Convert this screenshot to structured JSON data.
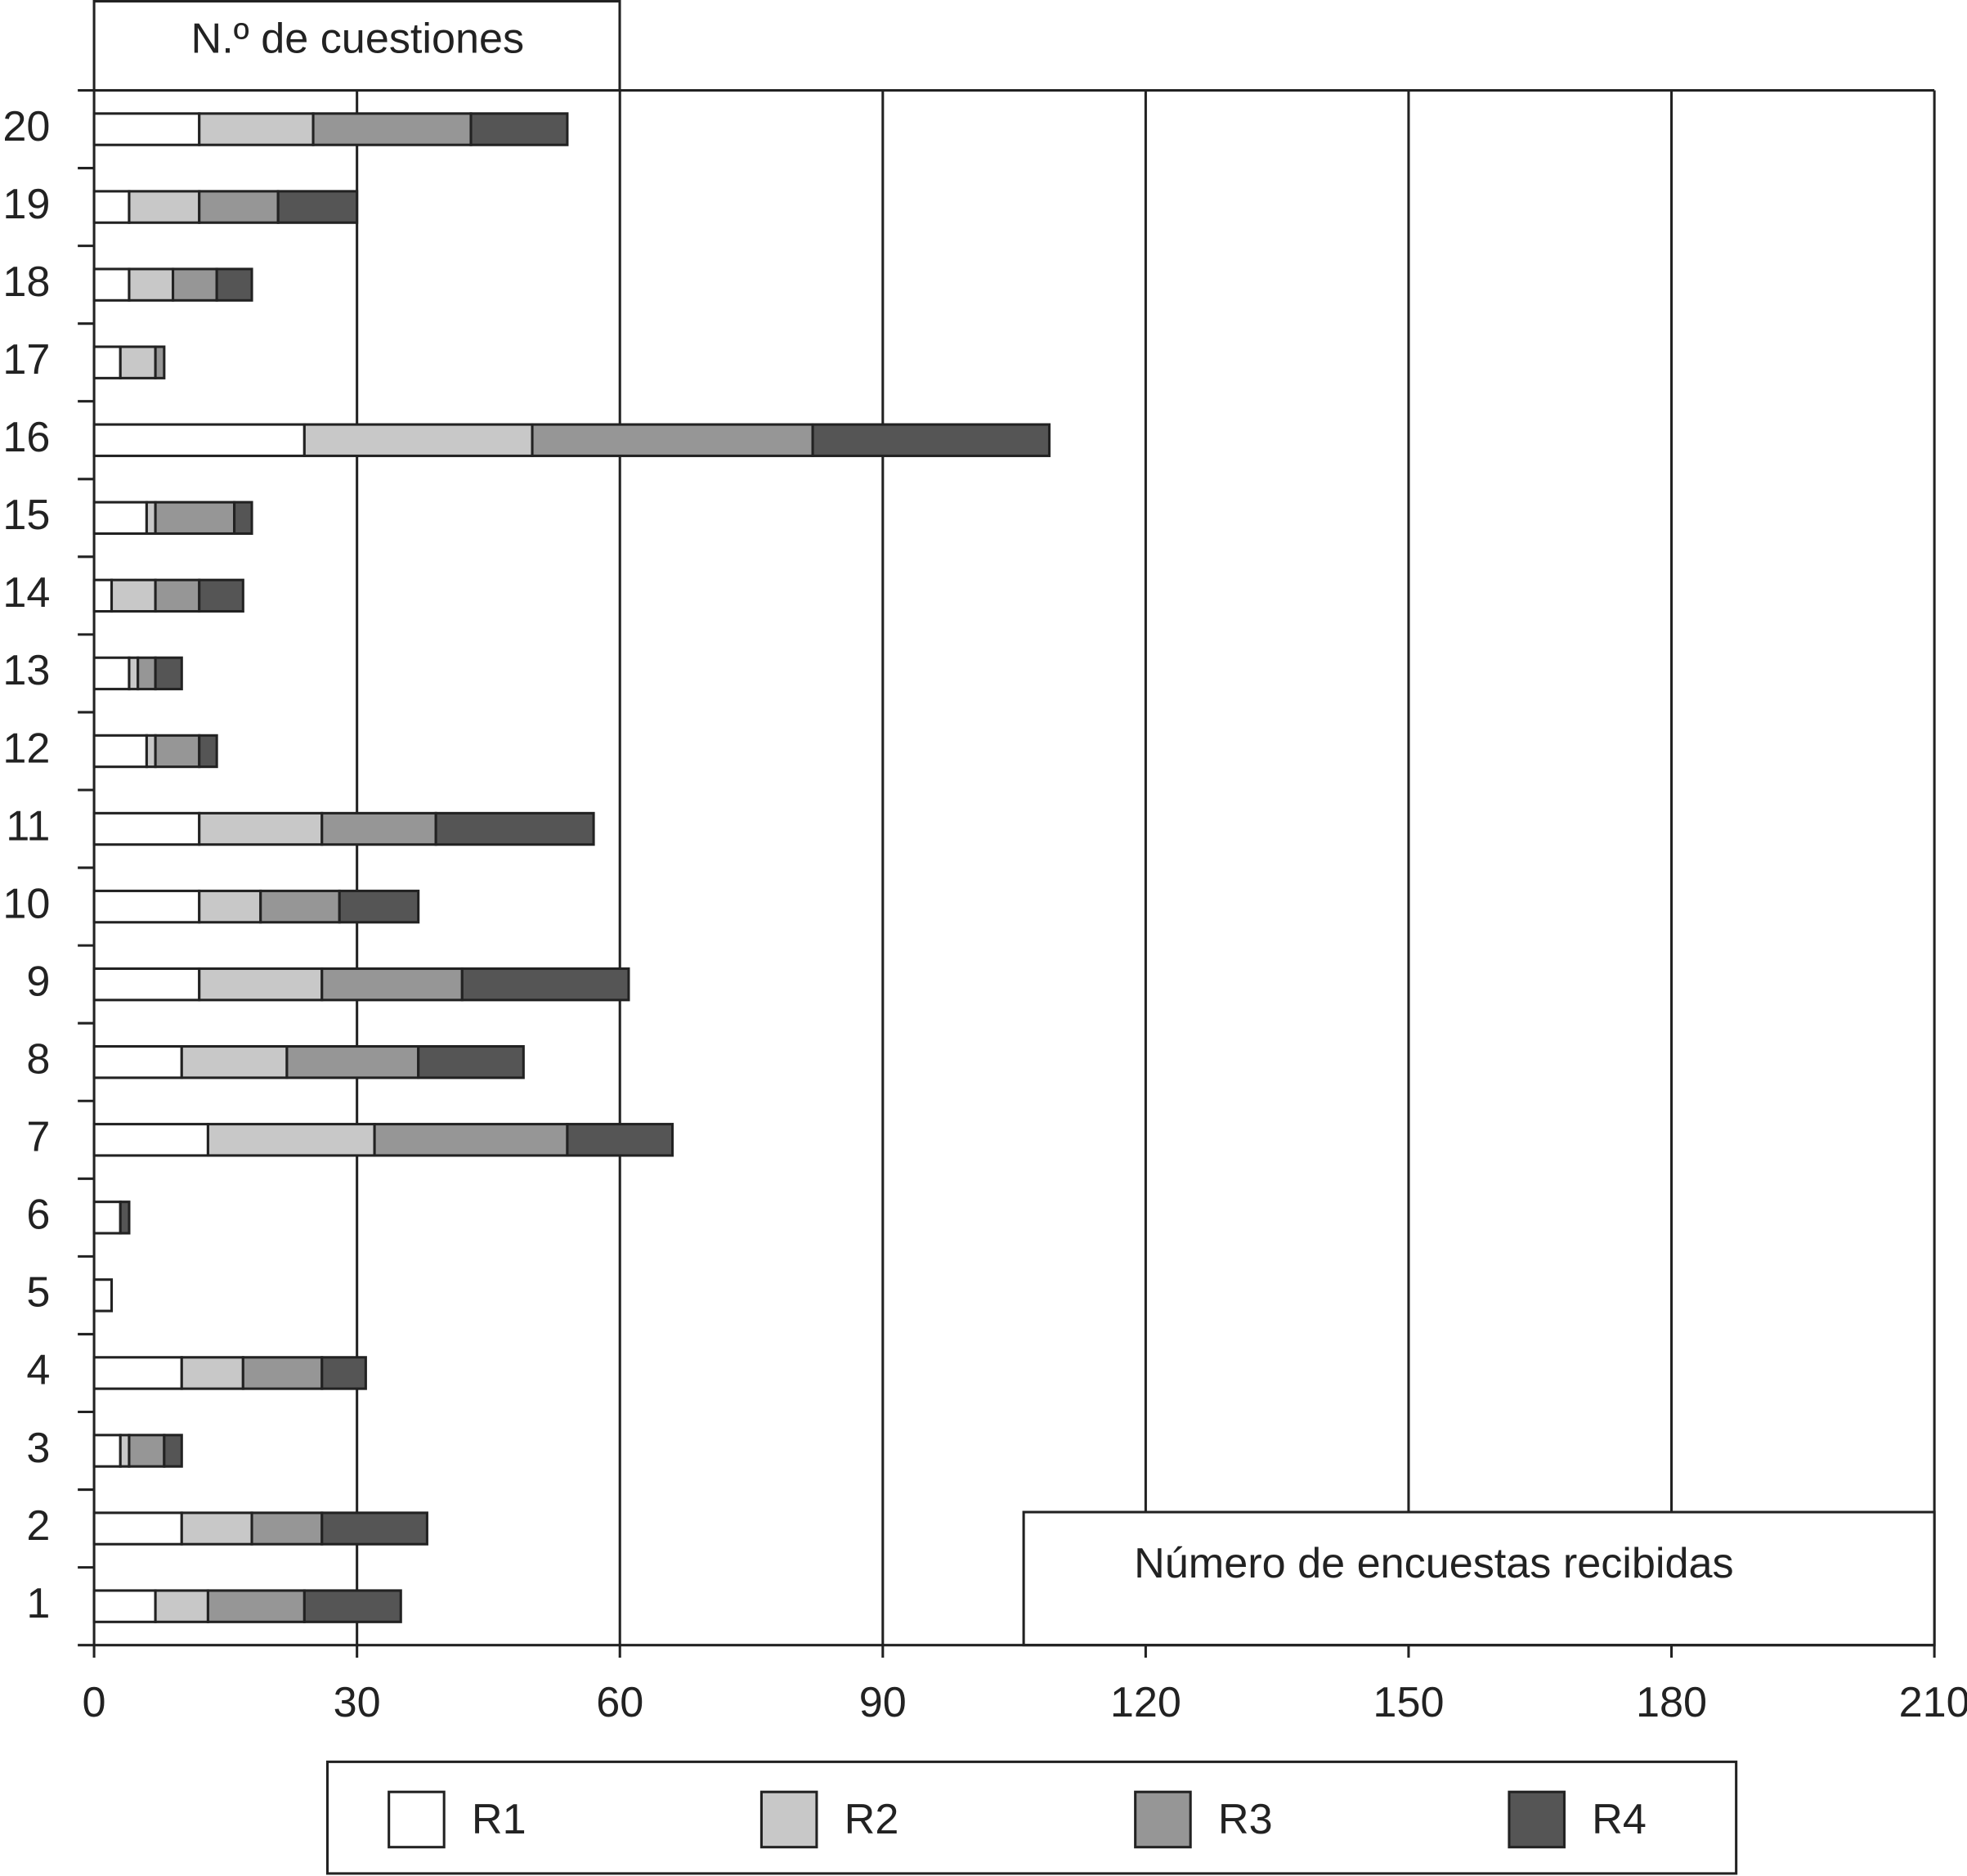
{
  "chart_data": {
    "type": "bar",
    "orientation": "horizontal",
    "stacked": true,
    "x_label": "Número de encuestas recibidas",
    "y_label": "N.º de cuestiones",
    "categories": [
      "1",
      "2",
      "3",
      "4",
      "5",
      "6",
      "7",
      "8",
      "9",
      "10",
      "11",
      "12",
      "13",
      "14",
      "15",
      "16",
      "17",
      "18",
      "19",
      "20"
    ],
    "series": [
      {
        "name": "R1",
        "color": "#ffffff",
        "values": [
          7,
          10,
          3,
          10,
          2,
          3,
          13,
          10,
          12,
          12,
          12,
          6,
          4,
          2,
          6,
          24,
          3,
          4,
          4,
          12
        ]
      },
      {
        "name": "R2",
        "color": "#c8c8c8",
        "values": [
          6,
          8,
          1,
          7,
          0,
          0,
          19,
          12,
          14,
          7,
          14,
          1,
          1,
          5,
          1,
          26,
          4,
          5,
          8,
          13
        ]
      },
      {
        "name": "R3",
        "color": "#969696",
        "values": [
          11,
          8,
          4,
          9,
          0,
          0,
          22,
          15,
          16,
          9,
          13,
          5,
          2,
          5,
          9,
          32,
          1,
          5,
          9,
          18
        ]
      },
      {
        "name": "R4",
        "color": "#555555",
        "values": [
          11,
          12,
          2,
          5,
          0,
          1,
          12,
          12,
          19,
          9,
          18,
          2,
          3,
          5,
          2,
          27,
          0,
          4,
          9,
          11
        ]
      }
    ],
    "xlim": [
      0,
      210
    ],
    "xticks": [
      0,
      30,
      60,
      90,
      120,
      150,
      180,
      210
    ],
    "grid": true
  }
}
